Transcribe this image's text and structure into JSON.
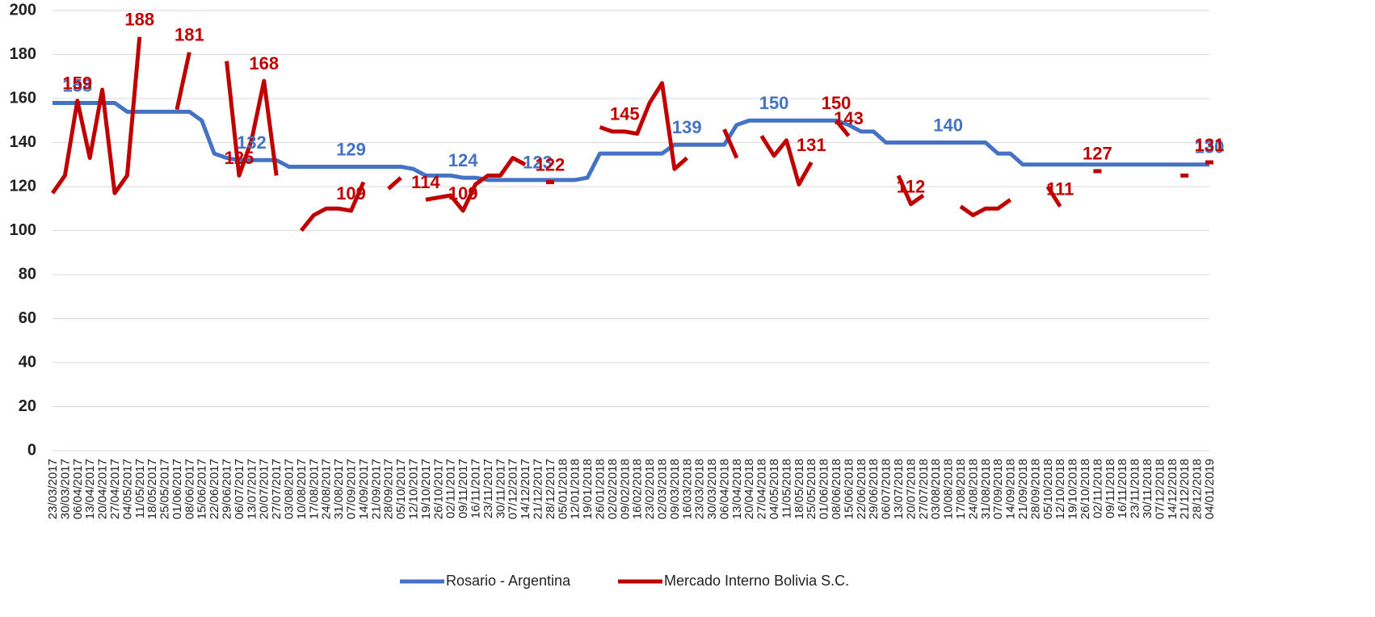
{
  "chart_data": {
    "type": "line",
    "categories": [
      "23/03/2017",
      "30/03/2017",
      "06/04/2017",
      "13/04/2017",
      "20/04/2017",
      "27/04/2017",
      "04/05/2017",
      "11/05/2017",
      "18/05/2017",
      "25/05/2017",
      "01/06/2017",
      "08/06/2017",
      "15/06/2017",
      "22/06/2017",
      "29/06/2017",
      "06/07/2017",
      "13/07/2017",
      "20/07/2017",
      "27/07/2017",
      "03/08/2017",
      "10/08/2017",
      "17/08/2017",
      "24/08/2017",
      "31/08/2017",
      "07/09/2017",
      "14/09/2017",
      "21/09/2017",
      "28/09/2017",
      "05/10/2017",
      "12/10/2017",
      "19/10/2017",
      "26/10/2017",
      "02/11/2017",
      "09/11/2017",
      "16/11/2017",
      "23/11/2017",
      "30/11/2017",
      "07/12/2017",
      "14/12/2017",
      "21/12/2017",
      "28/12/2017",
      "05/01/2018",
      "12/01/2018",
      "19/01/2018",
      "26/01/2018",
      "02/02/2018",
      "09/02/2018",
      "16/02/2018",
      "23/02/2018",
      "02/03/2018",
      "09/03/2018",
      "16/03/2018",
      "23/03/2018",
      "30/03/2018",
      "06/04/2018",
      "13/04/2018",
      "20/04/2018",
      "27/04/2018",
      "04/05/2018",
      "11/05/2018",
      "18/05/2018",
      "25/05/2018",
      "01/06/2018",
      "08/06/2018",
      "15/06/2018",
      "22/06/2018",
      "29/06/2018",
      "06/07/2018",
      "13/07/2018",
      "20/07/2018",
      "27/07/2018",
      "03/08/2018",
      "10/08/2018",
      "17/08/2018",
      "24/08/2018",
      "31/08/2018",
      "07/09/2018",
      "14/09/2018",
      "21/09/2018",
      "28/09/2018",
      "05/10/2018",
      "12/10/2018",
      "19/10/2018",
      "26/10/2018",
      "02/11/2018",
      "09/11/2018",
      "16/11/2018",
      "23/11/2018",
      "30/11/2018",
      "07/12/2018",
      "14/12/2018",
      "21/12/2018",
      "28/12/2018",
      "04/01/2019"
    ],
    "series": [
      {
        "name": "Rosario - Argentina",
        "color": "#4472c4",
        "values": [
          158,
          158,
          158,
          158,
          158,
          158,
          154,
          154,
          154,
          154,
          154,
          154,
          150,
          135,
          133,
          132,
          132,
          132,
          132,
          129,
          129,
          129,
          129,
          129,
          129,
          129,
          129,
          129,
          129,
          128,
          125,
          125,
          125,
          124,
          124,
          123,
          123,
          123,
          123,
          123,
          123,
          123,
          123,
          124,
          135,
          135,
          135,
          135,
          135,
          135,
          139,
          139,
          139,
          139,
          139,
          148,
          150,
          150,
          150,
          150,
          150,
          150,
          150,
          150,
          148,
          145,
          145,
          140,
          140,
          140,
          140,
          140,
          140,
          140,
          140,
          140,
          135,
          135,
          130,
          130,
          130,
          130,
          130,
          130,
          130,
          130,
          130,
          130,
          130,
          130,
          130,
          130,
          130,
          130
        ],
        "value_labels": [
          null,
          null,
          "158",
          null,
          null,
          null,
          null,
          null,
          null,
          null,
          null,
          null,
          null,
          null,
          null,
          null,
          "132",
          null,
          null,
          null,
          null,
          null,
          null,
          null,
          "129",
          null,
          null,
          null,
          null,
          null,
          null,
          null,
          null,
          "124",
          null,
          null,
          null,
          null,
          null,
          "123",
          null,
          null,
          null,
          null,
          null,
          null,
          null,
          null,
          null,
          null,
          null,
          "139",
          null,
          null,
          null,
          null,
          null,
          null,
          "150",
          null,
          null,
          null,
          null,
          null,
          null,
          null,
          null,
          null,
          null,
          null,
          null,
          null,
          "140",
          null,
          null,
          null,
          null,
          null,
          null,
          null,
          null,
          null,
          null,
          null,
          null,
          null,
          null,
          null,
          null,
          null,
          null,
          null,
          null,
          "130"
        ]
      },
      {
        "name": "Mercado Interno Bolivia S.C.",
        "color": "#c00000",
        "values": [
          117,
          125,
          159,
          133,
          164,
          117,
          125,
          188,
          null,
          null,
          155,
          181,
          null,
          null,
          177,
          125,
          141,
          168,
          125,
          null,
          100,
          107,
          110,
          110,
          109,
          122,
          null,
          119,
          124,
          null,
          114,
          115,
          116,
          109,
          121,
          125,
          125,
          133,
          130,
          null,
          122,
          null,
          null,
          null,
          147,
          145,
          145,
          144,
          158,
          167,
          128,
          133,
          null,
          null,
          146,
          133,
          null,
          143,
          134,
          141,
          121,
          131,
          null,
          150,
          143,
          null,
          null,
          null,
          125,
          112,
          116,
          null,
          null,
          111,
          107,
          110,
          110,
          114,
          null,
          null,
          120,
          111,
          null,
          null,
          127,
          null,
          null,
          null,
          null,
          null,
          null,
          125,
          null,
          131
        ],
        "value_labels": [
          null,
          null,
          "159",
          null,
          null,
          null,
          null,
          "188",
          null,
          null,
          null,
          "181",
          null,
          null,
          null,
          "125",
          null,
          "168",
          null,
          null,
          null,
          null,
          null,
          null,
          "109",
          null,
          null,
          null,
          null,
          null,
          "114",
          null,
          null,
          "109",
          null,
          null,
          null,
          null,
          null,
          null,
          "122",
          null,
          null,
          null,
          null,
          null,
          "145",
          null,
          null,
          null,
          null,
          null,
          null,
          null,
          null,
          null,
          null,
          null,
          null,
          null,
          null,
          "131",
          null,
          "150",
          "143",
          null,
          null,
          null,
          null,
          "112",
          null,
          null,
          null,
          null,
          null,
          null,
          null,
          null,
          null,
          null,
          null,
          "111",
          null,
          null,
          "127",
          null,
          null,
          null,
          null,
          null,
          null,
          null,
          null,
          "131"
        ]
      }
    ],
    "ylim": [
      0,
      200
    ],
    "yticks": [
      0,
      20,
      40,
      60,
      80,
      100,
      120,
      140,
      160,
      180,
      200
    ],
    "grid": true
  }
}
